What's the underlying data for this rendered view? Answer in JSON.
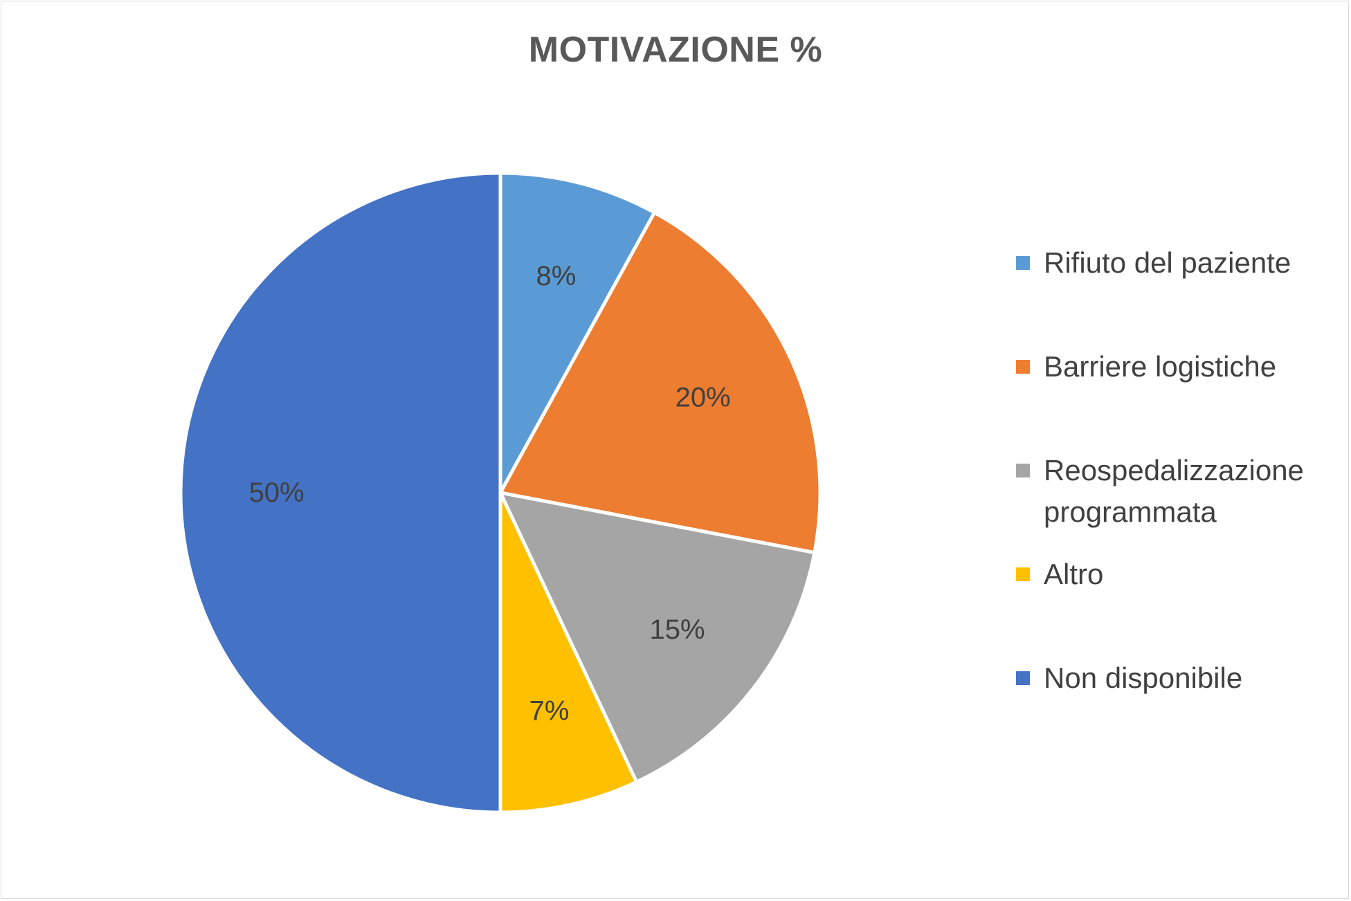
{
  "chart_data": {
    "type": "pie",
    "title": "MOTIVAZIONE %",
    "categories": [
      "Rifiuto del paziente",
      "Barriere logistiche",
      "Reospedalizzazione programmata",
      "Altro",
      "Non disponibile"
    ],
    "values": [
      8,
      20,
      15,
      7,
      50
    ],
    "data_labels": [
      "8%",
      "20%",
      "15%",
      "7%",
      "50%"
    ],
    "colors": [
      "#5b9bd5",
      "#ed7d31",
      "#a5a5a5",
      "#ffc000",
      "#4472c4"
    ],
    "legend_position": "right"
  }
}
